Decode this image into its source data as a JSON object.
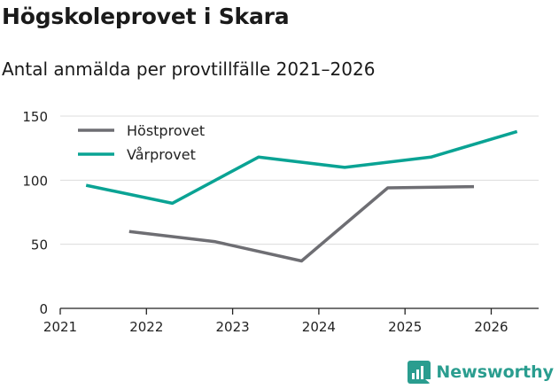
{
  "title": "Högskoleprovet i Skara",
  "subtitle": "Antal anmälda per provtillfälle 2021–2026",
  "brand": {
    "name": "Newsworthy",
    "color": "#2a9d8f"
  },
  "chart_data": {
    "type": "line",
    "title": "Högskoleprovet i Skara",
    "subtitle": "Antal anmälda per provtillfälle 2021–2026",
    "xlabel": "",
    "ylabel": "",
    "xlim": [
      2021,
      2026.55
    ],
    "ylim": [
      0,
      150
    ],
    "x_ticks": [
      2021,
      2022,
      2023,
      2024,
      2025,
      2026
    ],
    "y_ticks": [
      0,
      50,
      100,
      150
    ],
    "grid": true,
    "legend_position": "top-left",
    "series": [
      {
        "name": "Höstprovet",
        "color": "#6e6e73",
        "points": [
          [
            2021.8,
            60
          ],
          [
            2022.8,
            52
          ],
          [
            2023.8,
            37
          ],
          [
            2024.8,
            94
          ],
          [
            2025.8,
            95
          ]
        ]
      },
      {
        "name": "Vårprovet",
        "color": "#0aa394",
        "points": [
          [
            2021.3,
            96
          ],
          [
            2022.3,
            82
          ],
          [
            2023.3,
            118
          ],
          [
            2024.3,
            110
          ],
          [
            2025.3,
            118
          ],
          [
            2026.3,
            138
          ]
        ]
      }
    ]
  }
}
